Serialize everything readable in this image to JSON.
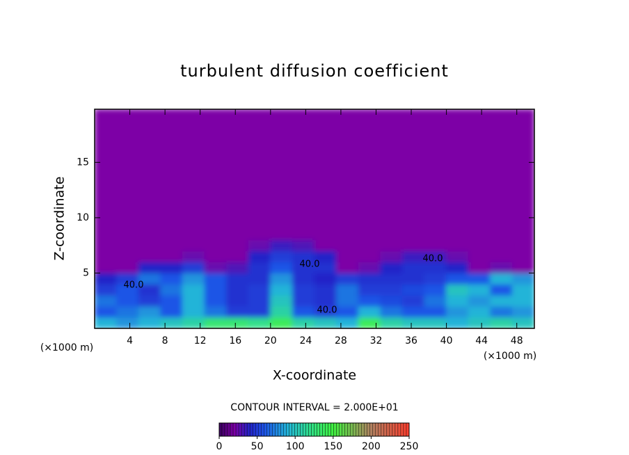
{
  "chart_data": {
    "type": "contour",
    "title": "turbulent diffusion coefficient",
    "x_label": "X-coordinate",
    "y_label": "Z-coordinate",
    "x_unit_label": "(×1000 m)",
    "x_unit_label_right": "(×1000 m)",
    "xlim": [
      0,
      50
    ],
    "ylim": [
      0,
      19.8
    ],
    "xticks": [
      4,
      8,
      12,
      16,
      20,
      24,
      28,
      32,
      36,
      40,
      44,
      48
    ],
    "yticks": [
      5,
      10,
      15
    ],
    "x_edges": [
      0,
      2.5,
      5,
      7.5,
      10,
      12.5,
      15,
      17.5,
      20,
      22.5,
      25,
      27.5,
      30,
      32.5,
      35,
      37.5,
      40,
      42.5,
      45,
      47.5,
      50
    ],
    "y_edges": [
      0,
      1,
      2,
      3,
      4,
      5,
      6,
      7,
      8,
      19.8
    ],
    "z": [
      [
        90,
        80,
        90,
        100,
        110,
        130,
        130,
        120,
        140,
        110,
        100,
        90,
        140,
        110,
        100,
        100,
        90,
        100,
        110,
        100
      ],
      [
        60,
        70,
        80,
        60,
        90,
        70,
        50,
        50,
        110,
        60,
        50,
        60,
        90,
        70,
        60,
        60,
        80,
        90,
        70,
        80
      ],
      [
        70,
        60,
        50,
        60,
        90,
        60,
        45,
        50,
        100,
        50,
        45,
        70,
        60,
        55,
        50,
        70,
        90,
        80,
        90,
        90
      ],
      [
        50,
        60,
        45,
        70,
        90,
        60,
        45,
        50,
        90,
        50,
        45,
        70,
        50,
        50,
        55,
        60,
        100,
        90,
        60,
        90
      ],
      [
        40,
        50,
        70,
        60,
        80,
        60,
        45,
        45,
        80,
        45,
        40,
        50,
        45,
        45,
        45,
        50,
        60,
        60,
        90,
        80
      ],
      [
        20,
        20,
        40,
        40,
        50,
        25,
        30,
        45,
        60,
        45,
        45,
        20,
        25,
        40,
        45,
        45,
        40,
        20,
        25,
        20
      ],
      [
        20,
        20,
        20,
        20,
        25,
        20,
        20,
        40,
        50,
        45,
        40,
        20,
        20,
        25,
        35,
        35,
        25,
        20,
        20,
        20
      ],
      [
        20,
        20,
        20,
        20,
        20,
        20,
        20,
        25,
        35,
        30,
        20,
        20,
        20,
        20,
        20,
        20,
        20,
        20,
        20,
        20
      ],
      [
        20,
        20,
        20,
        20,
        20,
        20,
        20,
        20,
        20,
        20,
        20,
        20,
        20,
        20,
        20,
        20,
        20,
        20,
        20,
        20
      ]
    ],
    "contour_labels": [
      "40.0",
      "40.0",
      "40.0",
      "40.0"
    ],
    "contour_interval_label": "CONTOUR INTERVAL = 2.000E+01",
    "colorbar_lim": [
      0,
      250
    ],
    "colorbar_ticks": [
      0,
      50,
      100,
      150,
      200,
      250
    ],
    "colormap": [
      {
        "value": 0,
        "color": "#3a0060"
      },
      {
        "value": 20,
        "color": "#7d00a6"
      },
      {
        "value": 40,
        "color": "#2323c8"
      },
      {
        "value": 60,
        "color": "#1e55e6"
      },
      {
        "value": 90,
        "color": "#22b4d8"
      },
      {
        "value": 120,
        "color": "#30e08a"
      },
      {
        "value": 150,
        "color": "#40f040"
      },
      {
        "value": 200,
        "color": "#b08060"
      },
      {
        "value": 250,
        "color": "#ff4030"
      }
    ]
  }
}
